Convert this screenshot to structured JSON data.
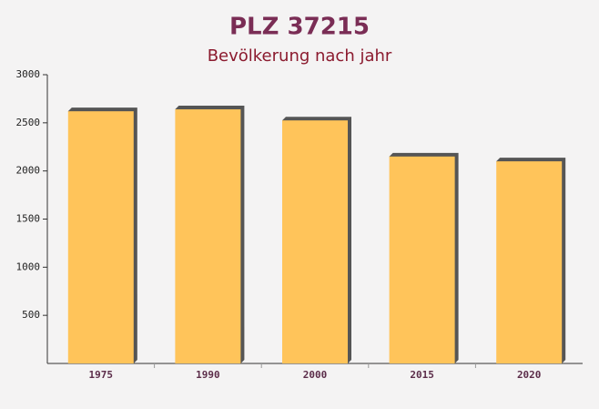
{
  "chart_data": {
    "type": "bar",
    "title": "PLZ 37215",
    "subtitle": "Bevölkerung nach jahr",
    "categories": [
      "1975",
      "1990",
      "2000",
      "2015",
      "2020"
    ],
    "values": [
      2620,
      2640,
      2525,
      2150,
      2100
    ],
    "color": "#ffc45a",
    "ylim": [
      0,
      3000
    ],
    "yticks": [
      500,
      1000,
      1500,
      2000,
      2500,
      3000
    ]
  }
}
